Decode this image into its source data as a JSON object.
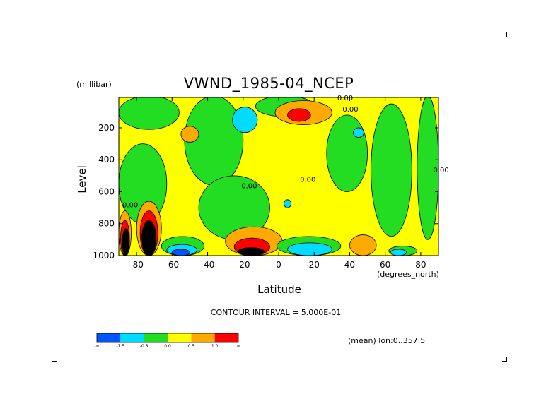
{
  "chart_data": {
    "type": "heatmap",
    "title": "VWND_1985-04_NCEP",
    "ylabel": "Level",
    "yunits": "(millibar)",
    "xlabel": "Latitude",
    "xunits": "(degrees_north)",
    "xlim": [
      -90,
      90
    ],
    "ylim": [
      1000,
      10
    ],
    "y_reversed": true,
    "xticks": [
      -80,
      -60,
      -40,
      -20,
      0,
      20,
      40,
      60,
      80
    ],
    "yticks": [
      200,
      400,
      600,
      800,
      1000
    ],
    "contour_interval_text": "CONTOUR INTERVAL = 5.000E-01",
    "annotation": "(mean) lon:0..357.5",
    "contour_labels": [
      {
        "text": "0.00",
        "lat": 33,
        "level": 10
      },
      {
        "text": "0.00",
        "lat": 36,
        "level": 80
      },
      {
        "text": "0.00",
        "lat": 12,
        "level": 520
      },
      {
        "text": "0.00",
        "lat": -21,
        "level": 560
      },
      {
        "text": "0.00",
        "lat": -88,
        "level": 680
      },
      {
        "text": "0.00",
        "lat": 87,
        "level": 460
      }
    ],
    "legend": {
      "colors": [
        "#0055ff",
        "#00dcff",
        "#22dd22",
        "#ffff00",
        "#ffaa00",
        "#ff0000"
      ],
      "boundaries": [
        "-∞",
        "-1.5",
        "-0.5",
        "0.0",
        "0.5",
        "1.0",
        "∞"
      ]
    },
    "regions": [
      {
        "band": 3,
        "lat": [
          -92,
          92
        ],
        "level": [
          0,
          1000
        ]
      },
      {
        "band": 2,
        "lat": [
          -90,
          -56
        ],
        "level": [
          0,
          210
        ]
      },
      {
        "band": 2,
        "lat": [
          -53,
          -20
        ],
        "level": [
          0,
          560
        ]
      },
      {
        "band": 2,
        "lat": [
          -45,
          -5
        ],
        "level": [
          500,
          900
        ]
      },
      {
        "band": 2,
        "lat": [
          -13,
          20
        ],
        "level": [
          0,
          130
        ]
      },
      {
        "band": 2,
        "lat": [
          27,
          50
        ],
        "level": [
          120,
          600
        ]
      },
      {
        "band": 2,
        "lat": [
          52,
          75
        ],
        "level": [
          50,
          880
        ]
      },
      {
        "band": 2,
        "lat": [
          78,
          90
        ],
        "level": [
          0,
          900
        ]
      },
      {
        "band": 2,
        "lat": [
          -90,
          -63
        ],
        "level": [
          300,
          800
        ]
      },
      {
        "band": 1,
        "lat": [
          -26,
          -12
        ],
        "level": [
          70,
          230
        ]
      },
      {
        "band": 1,
        "lat": [
          3,
          7
        ],
        "level": [
          650,
          700
        ]
      },
      {
        "band": 1,
        "lat": [
          42,
          48
        ],
        "level": [
          200,
          260
        ]
      },
      {
        "band": 4,
        "lat": [
          -55,
          -45
        ],
        "level": [
          190,
          290
        ]
      },
      {
        "band": 4,
        "lat": [
          -2,
          30
        ],
        "level": [
          30,
          180
        ]
      },
      {
        "band": 5,
        "lat": [
          5,
          18
        ],
        "level": [
          80,
          160
        ]
      },
      {
        "band": 4,
        "lat": [
          -30,
          2
        ],
        "level": [
          820,
          1000
        ]
      },
      {
        "band": 5,
        "lat": [
          -25,
          -5
        ],
        "level": [
          890,
          1000
        ]
      },
      {
        "band": 6,
        "lat": [
          -23,
          -8
        ],
        "level": [
          950,
          1000
        ]
      },
      {
        "band": 4,
        "lat": [
          40,
          55
        ],
        "level": [
          870,
          1000
        ]
      },
      {
        "band": 4,
        "lat": [
          -90,
          -83
        ],
        "level": [
          720,
          1000
        ]
      },
      {
        "band": 5,
        "lat": [
          -89,
          -84
        ],
        "level": [
          780,
          1000
        ]
      },
      {
        "band": 6,
        "lat": [
          -88,
          -84
        ],
        "level": [
          830,
          1000
        ]
      },
      {
        "band": 4,
        "lat": [
          -80,
          -66
        ],
        "level": [
          660,
          1000
        ]
      },
      {
        "band": 5,
        "lat": [
          -78,
          -68
        ],
        "level": [
          720,
          1000
        ]
      },
      {
        "band": 6,
        "lat": [
          -77,
          -69
        ],
        "level": [
          780,
          1000
        ]
      },
      {
        "band": 2,
        "lat": [
          -66,
          -42
        ],
        "level": [
          880,
          1000
        ]
      },
      {
        "band": 1,
        "lat": [
          -63,
          -46
        ],
        "level": [
          930,
          1000
        ]
      },
      {
        "band": 0,
        "lat": [
          -60,
          -50
        ],
        "level": [
          960,
          1000
        ]
      },
      {
        "band": 2,
        "lat": [
          -1,
          35
        ],
        "level": [
          880,
          1000
        ]
      },
      {
        "band": 1,
        "lat": [
          5,
          30
        ],
        "level": [
          920,
          1000
        ]
      },
      {
        "band": 2,
        "lat": [
          62,
          78
        ],
        "level": [
          940,
          1000
        ]
      },
      {
        "band": 1,
        "lat": [
          63,
          72
        ],
        "level": [
          960,
          1000
        ]
      }
    ]
  }
}
